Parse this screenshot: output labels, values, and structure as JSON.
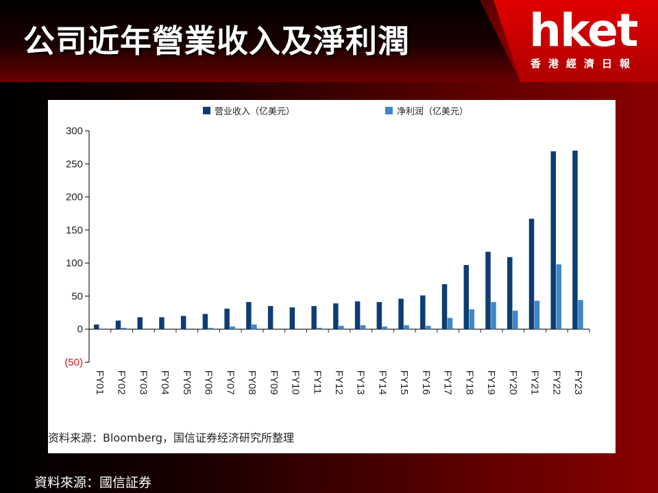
{
  "slide": {
    "title": "公司近年營業收入及淨利潤",
    "logo_text": "hket",
    "logo_subtitle": "香港經濟日報",
    "source_outer": "資料來源：國信証券"
  },
  "colors": {
    "revenue": "#0e3d75",
    "net_profit": "#3f87c6",
    "negative_label": "#d0141c",
    "axis": "#222222"
  },
  "chart_data": {
    "type": "bar",
    "categories": [
      "FY01",
      "FY02",
      "FY03",
      "FY04",
      "FY05",
      "FY06",
      "FY07",
      "FY08",
      "FY09",
      "FY10",
      "FY11",
      "FY12",
      "FY13",
      "FY14",
      "FY15",
      "FY16",
      "FY17",
      "FY18",
      "FY19",
      "FY20",
      "FY21",
      "FY22",
      "FY23"
    ],
    "series": [
      {
        "name": "营业收入（亿美元）",
        "values": [
          7,
          13,
          18,
          18,
          20,
          23,
          31,
          41,
          35,
          33,
          35,
          39,
          42,
          41,
          46,
          51,
          68,
          97,
          117,
          109,
          167,
          269,
          270
        ]
      },
      {
        "name": "净利润（亿美元）",
        "values": [
          0,
          2,
          0,
          0,
          0,
          2,
          4,
          7,
          0,
          0,
          2,
          5,
          6,
          4,
          6,
          5,
          17,
          30,
          41,
          28,
          43,
          98,
          44
        ]
      }
    ],
    "y_ticks": [
      {
        "value": 300,
        "label": "300"
      },
      {
        "value": 250,
        "label": "250"
      },
      {
        "value": 200,
        "label": "200"
      },
      {
        "value": 150,
        "label": "150"
      },
      {
        "value": 100,
        "label": "100"
      },
      {
        "value": 50,
        "label": "50"
      },
      {
        "value": 0,
        "label": "0"
      },
      {
        "value": -50,
        "label": "(50)"
      }
    ],
    "ylim": [
      -50,
      300
    ],
    "legend_position": "top",
    "grid": false,
    "source_note": "资料来源：Bloomberg，国信证券经济研究所整理"
  }
}
